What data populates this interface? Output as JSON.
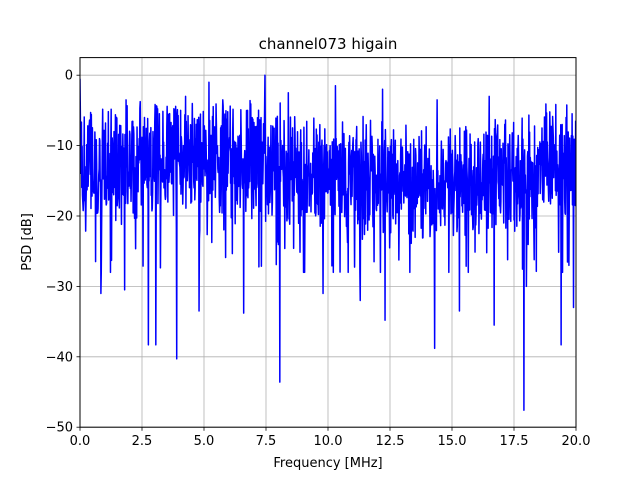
{
  "chart_data": {
    "type": "line",
    "title": "channel073 higain",
    "xlabel": "Frequency [MHz]",
    "ylabel": "PSD [dB]",
    "xlim": [
      0,
      20
    ],
    "ylim": [
      -50,
      2.5
    ],
    "xticks": [
      "0.0",
      "2.5",
      "5.0",
      "7.5",
      "10.0",
      "12.5",
      "15.0",
      "17.5",
      "20.0"
    ],
    "yticks": [
      "0",
      "−10",
      "−20",
      "−30",
      "−40",
      "−50"
    ],
    "grid": true,
    "series": [
      {
        "color": "#0000ff",
        "description": "dense noisy PSD trace, mostly between -20 and -5 dB",
        "typical_range": [
          -22,
          -5
        ],
        "peaks": [
          {
            "x": 0.0,
            "y": -0.5
          },
          {
            "x": 1.85,
            "y": -3.5
          },
          {
            "x": 3.9,
            "y": 0.0
          },
          {
            "x": 5.2,
            "y": -1.0
          },
          {
            "x": 7.45,
            "y": 0.0
          },
          {
            "x": 8.4,
            "y": -2.5
          },
          {
            "x": 10.3,
            "y": -1.5
          },
          {
            "x": 12.2,
            "y": -2.0
          },
          {
            "x": 14.4,
            "y": -3.5
          },
          {
            "x": 16.5,
            "y": -3.0
          },
          {
            "x": 19.6,
            "y": -6.0
          }
        ],
        "dips": [
          {
            "x": 0.85,
            "y": -31.0
          },
          {
            "x": 1.8,
            "y": -30.5
          },
          {
            "x": 2.75,
            "y": -38.3
          },
          {
            "x": 3.05,
            "y": -38.3
          },
          {
            "x": 3.9,
            "y": -40.3
          },
          {
            "x": 4.8,
            "y": -33.5
          },
          {
            "x": 6.6,
            "y": -33.8
          },
          {
            "x": 8.05,
            "y": -43.6
          },
          {
            "x": 9.8,
            "y": -31.0
          },
          {
            "x": 11.3,
            "y": -32.0
          },
          {
            "x": 12.3,
            "y": -34.8
          },
          {
            "x": 14.3,
            "y": -38.8
          },
          {
            "x": 15.3,
            "y": -33.5
          },
          {
            "x": 16.7,
            "y": -35.5
          },
          {
            "x": 17.9,
            "y": -47.6
          },
          {
            "x": 18.0,
            "y": -30.0
          },
          {
            "x": 19.4,
            "y": -38.3
          },
          {
            "x": 19.9,
            "y": -33.0
          }
        ]
      }
    ]
  }
}
